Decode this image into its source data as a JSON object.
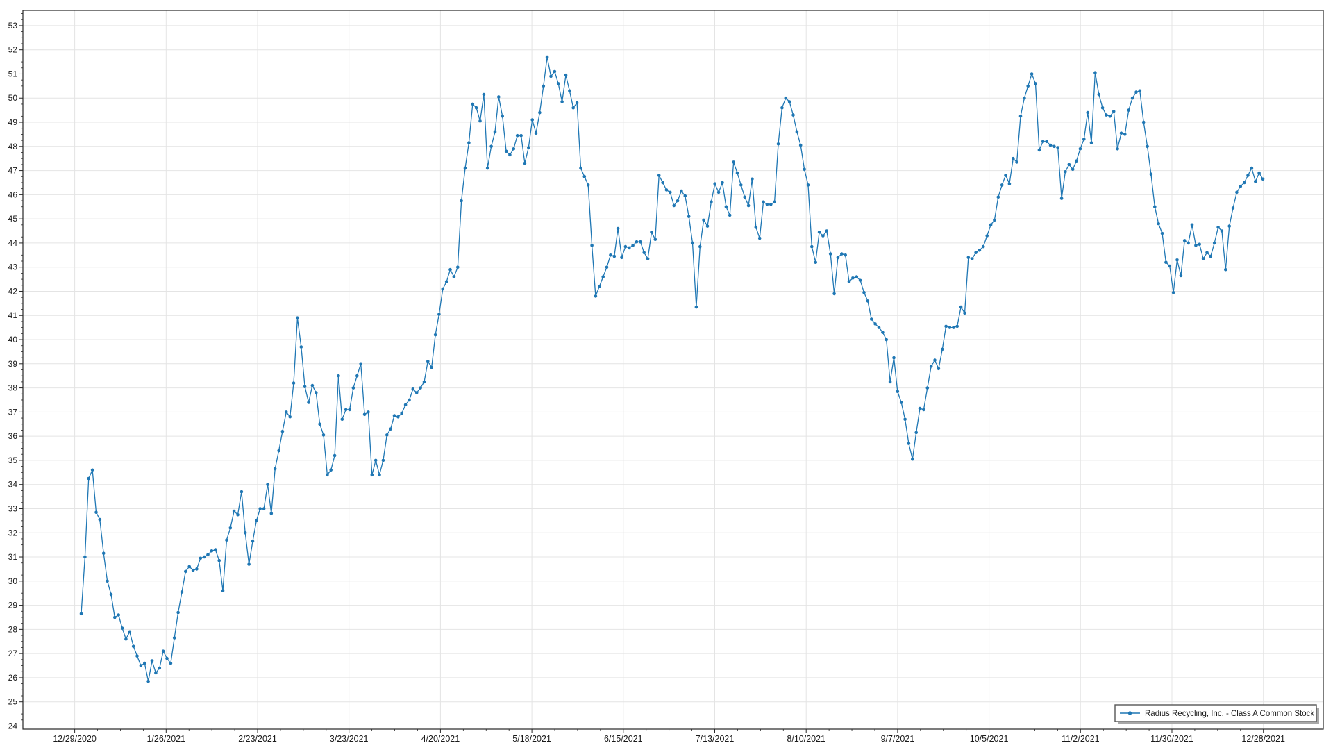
{
  "chart_data": {
    "type": "line",
    "title": "",
    "xlabel": "",
    "ylabel": "",
    "grid": true,
    "legend_position": "bottom-right-inside",
    "line_color": "#1f77b4",
    "marker": "circle",
    "marker_color": "#1f77b4",
    "grid_color": "#e4e4e4",
    "axis_color": "#262626",
    "tick_label_color": "#1a1a1a",
    "ylim": [
      23.87,
      53.63
    ],
    "y_ticks": [
      24,
      25,
      26,
      27,
      28,
      29,
      30,
      31,
      32,
      33,
      34,
      35,
      36,
      37,
      38,
      39,
      40,
      41,
      42,
      43,
      44,
      45,
      46,
      47,
      48,
      49,
      50,
      51,
      52,
      53
    ],
    "x_tick_labels": [
      "12/29/2020",
      "1/26/2021",
      "2/23/2021",
      "3/23/2021",
      "4/20/2021",
      "5/18/2021",
      "6/15/2021",
      "7/13/2021",
      "8/10/2021",
      "9/7/2021",
      "10/5/2021",
      "11/2/2021",
      "11/30/2021",
      "12/28/2021"
    ],
    "series": [
      {
        "name": "Radius Recycling, Inc. - Class A Common Stock",
        "values": [
          28.65,
          31.0,
          34.25,
          34.6,
          32.85,
          32.55,
          31.15,
          30.0,
          29.45,
          28.5,
          28.6,
          28.05,
          27.6,
          27.9,
          27.3,
          26.9,
          26.5,
          26.6,
          25.85,
          26.7,
          26.2,
          26.4,
          27.1,
          26.8,
          26.6,
          27.65,
          28.7,
          29.55,
          30.4,
          30.6,
          30.45,
          30.5,
          30.95,
          31.0,
          31.1,
          31.25,
          31.3,
          30.85,
          29.6,
          31.7,
          32.2,
          32.9,
          32.75,
          33.7,
          32.0,
          30.7,
          31.65,
          32.5,
          33.0,
          33.0,
          34.0,
          32.8,
          34.65,
          35.4,
          36.2,
          37.0,
          36.8,
          38.2,
          40.9,
          39.7,
          38.05,
          37.4,
          38.1,
          37.8,
          36.5,
          36.05,
          34.4,
          34.6,
          35.2,
          38.5,
          36.7,
          37.1,
          37.1,
          38.0,
          38.5,
          39.0,
          36.9,
          37.0,
          34.4,
          35.0,
          34.4,
          35.0,
          36.05,
          36.3,
          36.85,
          36.8,
          36.95,
          37.3,
          37.5,
          37.95,
          37.8,
          38.0,
          38.25,
          39.1,
          38.85,
          40.2,
          41.05,
          42.1,
          42.4,
          42.9,
          42.6,
          43.0,
          45.75,
          47.1,
          48.15,
          49.75,
          49.6,
          49.05,
          50.15,
          47.1,
          48.0,
          48.6,
          50.05,
          49.25,
          47.8,
          47.65,
          47.9,
          48.45,
          48.45,
          47.3,
          47.95,
          49.1,
          48.55,
          49.4,
          50.5,
          51.7,
          50.9,
          51.1,
          50.6,
          49.85,
          50.95,
          50.3,
          49.6,
          49.8,
          47.1,
          46.75,
          46.4,
          43.9,
          41.8,
          42.2,
          42.6,
          43.0,
          43.5,
          43.45,
          44.6,
          43.4,
          43.85,
          43.8,
          43.9,
          44.05,
          44.05,
          43.6,
          43.35,
          44.45,
          44.15,
          46.8,
          46.5,
          46.2,
          46.1,
          45.55,
          45.75,
          46.15,
          45.95,
          45.1,
          44.0,
          41.35,
          43.85,
          44.95,
          44.7,
          45.7,
          46.45,
          46.1,
          46.5,
          45.5,
          45.15,
          47.35,
          46.9,
          46.4,
          45.9,
          45.55,
          46.65,
          44.65,
          44.2,
          45.7,
          45.6,
          45.6,
          45.7,
          48.1,
          49.6,
          50.0,
          49.85,
          49.3,
          48.6,
          48.05,
          47.05,
          46.4,
          43.85,
          43.2,
          44.45,
          44.3,
          44.5,
          43.55,
          41.9,
          43.4,
          43.55,
          43.5,
          42.4,
          42.55,
          42.6,
          42.45,
          41.95,
          41.6,
          40.85,
          40.65,
          40.5,
          40.3,
          40.0,
          38.25,
          39.25,
          37.85,
          37.4,
          36.7,
          35.7,
          35.05,
          36.15,
          37.15,
          37.1,
          38.0,
          38.9,
          39.15,
          38.8,
          39.6,
          40.55,
          40.5,
          40.5,
          40.55,
          41.35,
          41.1,
          43.4,
          43.35,
          43.6,
          43.7,
          43.85,
          44.3,
          44.75,
          44.95,
          45.9,
          46.4,
          46.8,
          46.45,
          47.5,
          47.35,
          49.25,
          50.0,
          50.5,
          51.0,
          50.6,
          47.85,
          48.2,
          48.2,
          48.05,
          48.0,
          47.95,
          45.85,
          46.95,
          47.25,
          47.05,
          47.4,
          47.9,
          48.3,
          49.4,
          48.15,
          51.05,
          50.15,
          49.6,
          49.3,
          49.25,
          49.45,
          47.9,
          48.55,
          48.5,
          49.5,
          50.0,
          50.25,
          50.3,
          49.0,
          48.0,
          46.85,
          45.5,
          44.8,
          44.4,
          43.2,
          43.05,
          41.95,
          43.3,
          42.65,
          44.1,
          44.0,
          44.75,
          43.9,
          43.95,
          43.35,
          43.6,
          43.45,
          44.0,
          44.65,
          44.5,
          42.9,
          44.7,
          45.45,
          46.1,
          46.35,
          46.5,
          46.8,
          47.1,
          46.55,
          46.9,
          46.65
        ]
      }
    ]
  },
  "legend": {
    "label": "Radius Recycling, Inc. - Class A Common Stock"
  }
}
